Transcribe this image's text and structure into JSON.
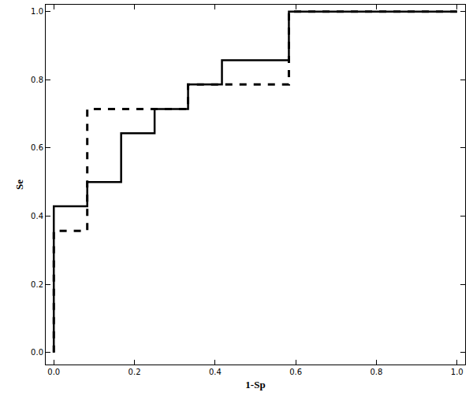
{
  "chart_data": {
    "type": "line",
    "x_label": "1-Sp",
    "y_label": "Se",
    "xlim": [
      -0.02,
      1.02
    ],
    "ylim": [
      -0.035,
      1.02
    ],
    "xticks": [
      {
        "value": 0,
        "label": "0.0"
      },
      0.2,
      0.4,
      0.6,
      0.8,
      {
        "value": 1,
        "label": "1.0"
      }
    ],
    "yticks": [
      {
        "value": 0,
        "label": "0.0"
      },
      0.2,
      0.4,
      0.6,
      0.8,
      {
        "value": 1,
        "label": "1.0"
      }
    ],
    "grid": false,
    "series": [
      {
        "color": "#000000",
        "line_style": "solid",
        "x": [
          0,
          0,
          0.083,
          0.167,
          0.25,
          0.333,
          0.417,
          0.583,
          1.0
        ],
        "values": [
          0,
          0.429,
          0.5,
          0.643,
          0.714,
          0.786,
          0.857,
          1.0,
          1.0
        ]
      },
      {
        "color": "#000000",
        "line_style": "dash",
        "x": [
          0,
          0,
          0.083,
          0.333,
          0.583,
          1.0
        ],
        "values": [
          0,
          0.357,
          0.714,
          0.786,
          1.0,
          1.0
        ]
      }
    ]
  }
}
